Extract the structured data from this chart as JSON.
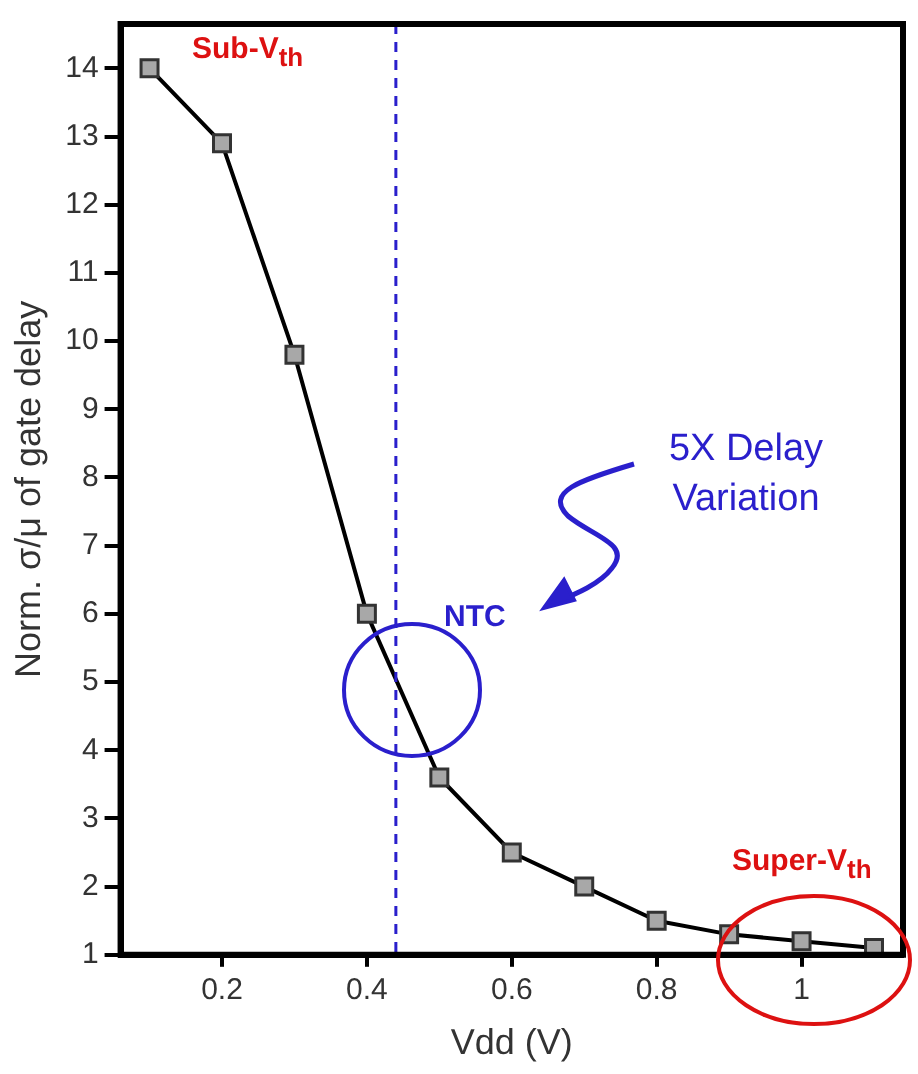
{
  "chart_data": {
    "type": "line",
    "xlabel": "Vdd (V)",
    "ylabel": "Norm. σ/μ of gate delay",
    "x": [
      0.1,
      0.2,
      0.3,
      0.4,
      0.5,
      0.6,
      0.7,
      0.8,
      0.9,
      1.0,
      1.1
    ],
    "series": [
      {
        "color": "#000000",
        "values": [
          14,
          12.9,
          9.8,
          6,
          3.6,
          2.5,
          2,
          1.5,
          1.3,
          1.2,
          1.1
        ]
      }
    ],
    "xlim": [
      0.06,
      1.14
    ],
    "ylim": [
      1,
      14.65
    ],
    "xticks": [
      0.2,
      0.4,
      0.6,
      0.8,
      1
    ],
    "yticks": [
      1,
      2,
      3,
      4,
      5,
      6,
      7,
      8,
      9,
      10,
      11,
      12,
      13,
      14
    ],
    "ref_lines": [
      {
        "axis": "x",
        "value": 0.44,
        "color": "#2a1fcc",
        "line_style": "dashed"
      }
    ],
    "annotations": [
      "Sub-V$_{th}$",
      "NTC",
      "Super-V$_{th}$",
      "5X Delay Variation"
    ],
    "marker": "square",
    "line_style": "solid",
    "grid": false,
    "legend": false
  }
}
